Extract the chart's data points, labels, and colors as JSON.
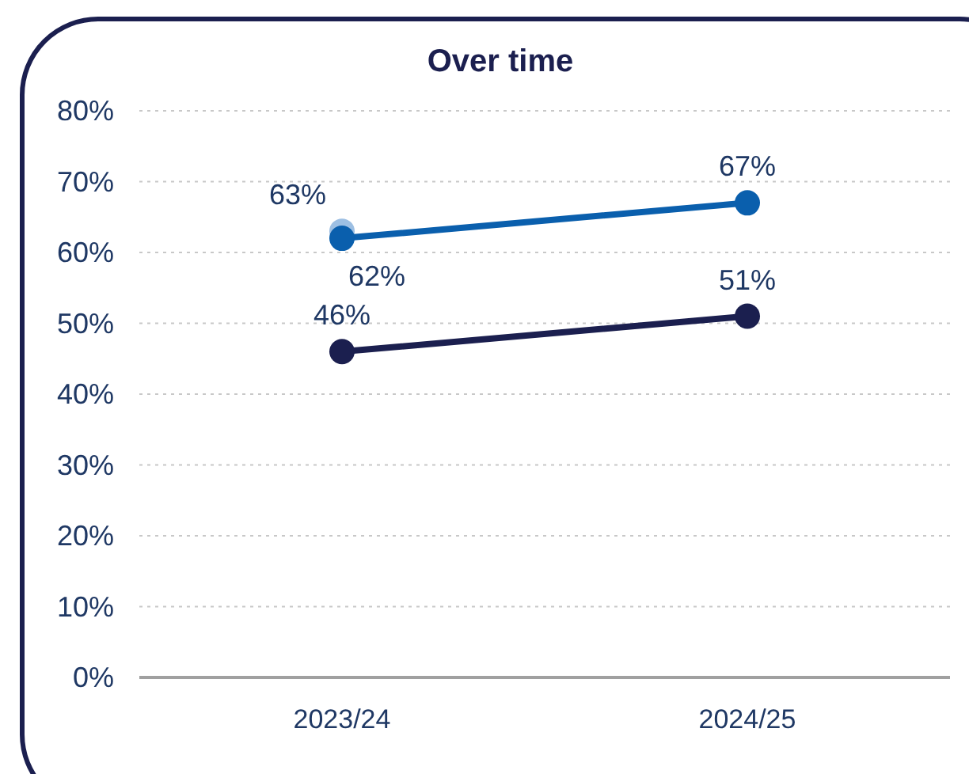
{
  "chart_data": {
    "type": "line",
    "title": "Over time",
    "categories": [
      "2023/24",
      "2024/25"
    ],
    "series": [
      {
        "color": "#9dbfe3",
        "values": [
          63,
          null
        ],
        "value_labels": [
          "63%",
          null
        ]
      },
      {
        "color": "#0a5fad",
        "values": [
          62,
          67
        ],
        "value_labels": [
          "62%",
          "67%"
        ]
      },
      {
        "color": "#1b1f4f",
        "values": [
          46,
          51
        ],
        "value_labels": [
          "46%",
          "51%"
        ]
      }
    ],
    "ylim": [
      0,
      80
    ],
    "yticks": [
      {
        "value": 0,
        "label": "0%"
      },
      {
        "value": 10,
        "label": "10%"
      },
      {
        "value": 20,
        "label": "20%"
      },
      {
        "value": 30,
        "label": "30%"
      },
      {
        "value": 40,
        "label": "40%"
      },
      {
        "value": 50,
        "label": "50%"
      },
      {
        "value": 60,
        "label": "60%"
      },
      {
        "value": 70,
        "label": "70%"
      },
      {
        "value": 80,
        "label": "80%"
      }
    ],
    "grid": "y",
    "marker": "circle",
    "line_style": "solid"
  }
}
